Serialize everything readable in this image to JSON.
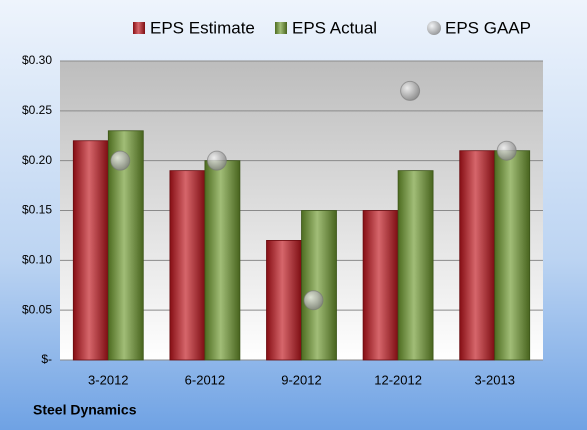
{
  "chart_data": {
    "type": "bar",
    "caption": "Steel Dynamics",
    "categories": [
      "3-2012",
      "6-2012",
      "9-2012",
      "12-2012",
      "3-2013"
    ],
    "series": [
      {
        "name": "EPS Estimate",
        "color": "#c0141c",
        "values": [
          0.22,
          0.19,
          0.12,
          0.15,
          0.21
        ]
      },
      {
        "name": "EPS Actual",
        "color": "#6e9a2e",
        "values": [
          0.23,
          0.2,
          0.15,
          0.19,
          0.21
        ]
      },
      {
        "name": "EPS GAAP",
        "color": "#a0a0a0",
        "type": "scatter",
        "values": [
          0.2,
          0.2,
          0.06,
          0.27,
          0.21
        ]
      }
    ],
    "ylim": [
      0,
      0.3
    ],
    "yticks": [
      {
        "value": 0,
        "label": "$-"
      },
      {
        "value": 0.05,
        "label": "$0.05"
      },
      {
        "value": 0.1,
        "label": "$0.10"
      },
      {
        "value": 0.15,
        "label": "$0.15"
      },
      {
        "value": 0.2,
        "label": "$0.20"
      },
      {
        "value": 0.25,
        "label": "$0.25"
      },
      {
        "value": 0.3,
        "label": "$0.30"
      }
    ],
    "grid": true,
    "legend": "top"
  }
}
